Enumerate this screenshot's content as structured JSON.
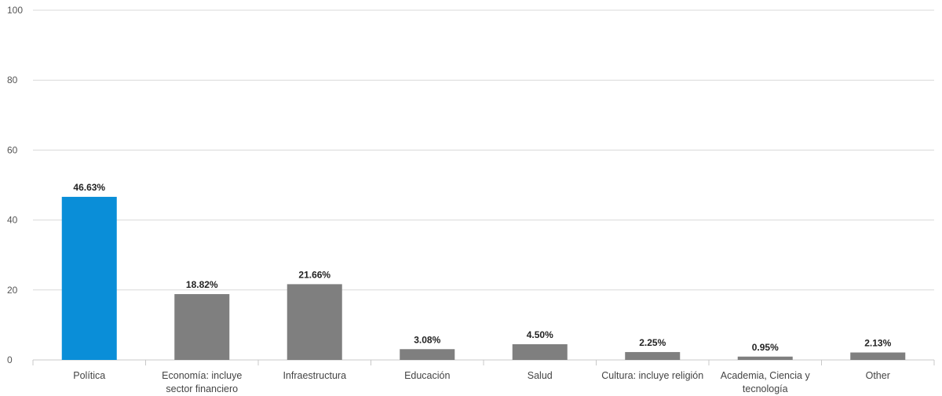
{
  "chart_data": {
    "type": "bar",
    "categories": [
      [
        "Política"
      ],
      [
        "Economía: incluye",
        "sector financiero"
      ],
      [
        "Infraestructura"
      ],
      [
        "Educación"
      ],
      [
        "Salud"
      ],
      [
        "Cultura: incluye religión"
      ],
      [
        "Academia, Ciencia y",
        "tecnología"
      ],
      [
        "Other"
      ]
    ],
    "values": [
      46.63,
      18.82,
      21.66,
      3.08,
      4.5,
      2.25,
      0.95,
      2.13
    ],
    "value_labels": [
      "46.63%",
      "18.82%",
      "21.66%",
      "3.08%",
      "4.50%",
      "2.25%",
      "0.95%",
      "2.13%"
    ],
    "ylim": [
      0,
      100
    ],
    "yticks": [
      0,
      20,
      40,
      60,
      80,
      100
    ],
    "grid": true,
    "colors": {
      "highlight": "#0A8ED8",
      "bar": "#7F7F7F",
      "grid": "#D9D9D9",
      "axis": "#C8C8C8"
    },
    "highlight_index": 0
  }
}
